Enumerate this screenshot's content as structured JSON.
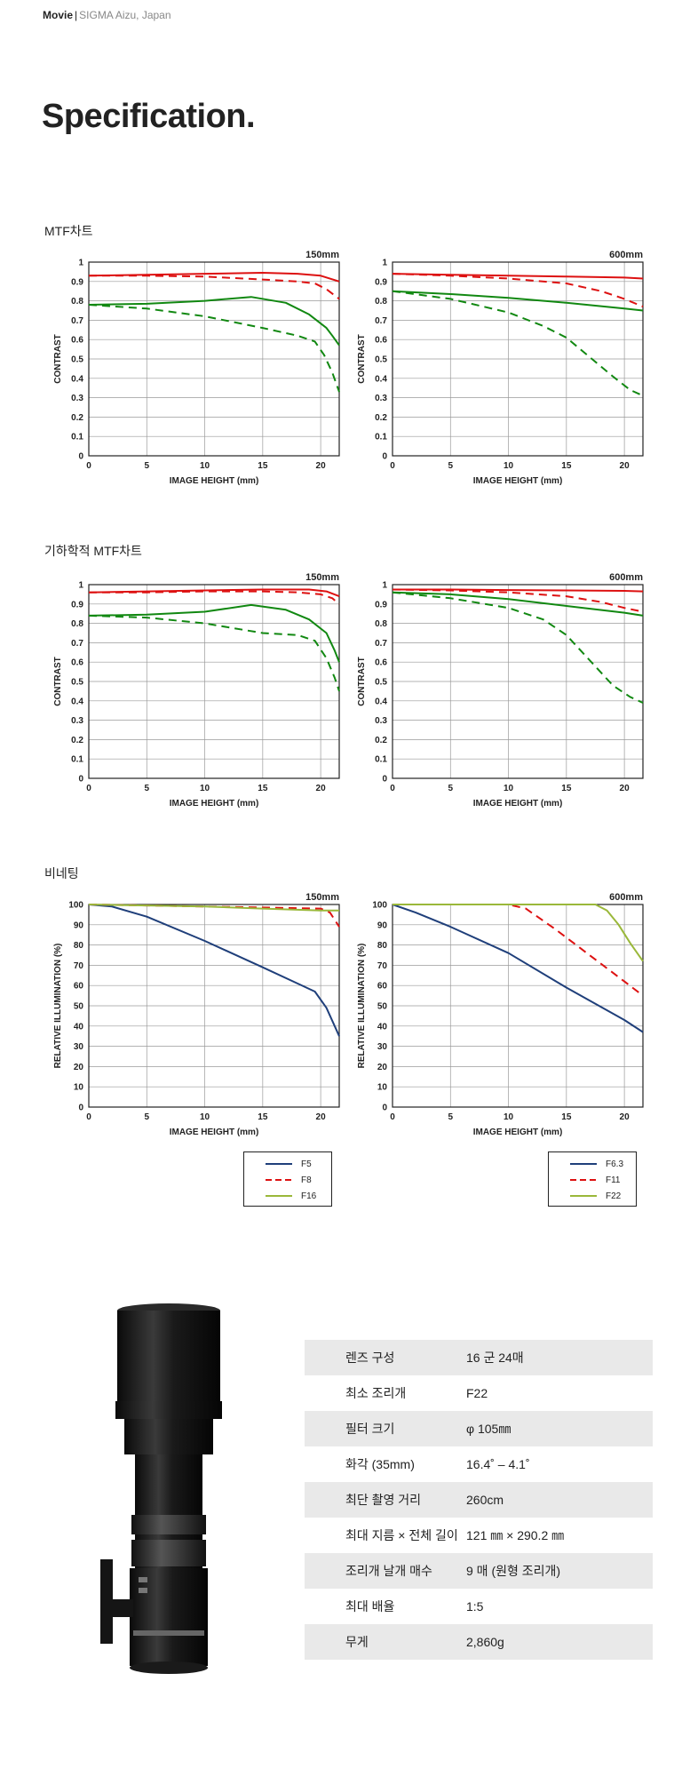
{
  "header": {
    "category": "Movie",
    "separator": "|",
    "location": "SIGMA Aizu, Japan"
  },
  "page_title": "Specification.",
  "sections": {
    "mtf": "MTF차트",
    "geometric_mtf": "기하학적 MTF차트",
    "vignetting": "비네팅"
  },
  "colors": {
    "red": "#dd1111",
    "green": "#118811",
    "blue": "#1f3f7a",
    "olive": "#9ab83a"
  },
  "chart_data": [
    {
      "id": "mtf-150",
      "type": "line",
      "title": "150mm",
      "xlabel": "IMAGE HEIGHT (mm)",
      "ylabel": "CONTRAST",
      "xlim": [
        0,
        21.6
      ],
      "ylim": [
        0,
        1
      ],
      "xticks": [
        0,
        5,
        10,
        15,
        20
      ],
      "yticks": [
        0,
        0.1,
        0.2,
        0.3,
        0.4,
        0.5,
        0.6,
        0.7,
        0.8,
        0.9,
        1
      ],
      "ytick_labels": [
        "0",
        "0.1",
        "0.2",
        "0.3",
        "0.4",
        "0.5",
        "0.6",
        "0.7",
        "0.8",
        "0.9",
        "1"
      ],
      "grid": true,
      "series": [
        {
          "color": "#dd1111",
          "dash": "solid",
          "x": [
            0,
            5,
            10,
            15,
            18,
            20,
            21.6
          ],
          "y": [
            0.93,
            0.935,
            0.94,
            0.945,
            0.94,
            0.93,
            0.9
          ]
        },
        {
          "color": "#dd1111",
          "dash": "dashed",
          "x": [
            0,
            5,
            10,
            15,
            18,
            19.5,
            20.5,
            21.6
          ],
          "y": [
            0.93,
            0.93,
            0.925,
            0.91,
            0.9,
            0.89,
            0.86,
            0.81
          ]
        },
        {
          "color": "#118811",
          "dash": "solid",
          "x": [
            0,
            5,
            10,
            14,
            17,
            19,
            20.5,
            21,
            21.6
          ],
          "y": [
            0.78,
            0.785,
            0.8,
            0.82,
            0.79,
            0.73,
            0.66,
            0.62,
            0.57
          ]
        },
        {
          "color": "#118811",
          "dash": "dashed",
          "x": [
            0,
            5,
            10,
            15,
            18,
            19.5,
            20.3,
            21,
            21.6
          ],
          "y": [
            0.78,
            0.76,
            0.72,
            0.66,
            0.62,
            0.59,
            0.52,
            0.43,
            0.33
          ]
        }
      ]
    },
    {
      "id": "mtf-600",
      "type": "line",
      "title": "600mm",
      "xlabel": "IMAGE HEIGHT (mm)",
      "ylabel": "CONTRAST",
      "xlim": [
        0,
        21.6
      ],
      "ylim": [
        0,
        1
      ],
      "xticks": [
        0,
        5,
        10,
        15,
        20
      ],
      "yticks": [
        0,
        0.1,
        0.2,
        0.3,
        0.4,
        0.5,
        0.6,
        0.7,
        0.8,
        0.9,
        1
      ],
      "ytick_labels": [
        "0",
        "0.1",
        "0.2",
        "0.3",
        "0.4",
        "0.5",
        "0.6",
        "0.7",
        "0.8",
        "0.9",
        "1"
      ],
      "grid": true,
      "series": [
        {
          "color": "#dd1111",
          "dash": "solid",
          "x": [
            0,
            5,
            10,
            15,
            20,
            21.6
          ],
          "y": [
            0.94,
            0.935,
            0.93,
            0.925,
            0.92,
            0.915
          ]
        },
        {
          "color": "#dd1111",
          "dash": "dashed",
          "x": [
            0,
            5,
            10,
            15,
            18,
            20,
            21.6
          ],
          "y": [
            0.94,
            0.93,
            0.915,
            0.89,
            0.85,
            0.81,
            0.77
          ]
        },
        {
          "color": "#118811",
          "dash": "solid",
          "x": [
            0,
            5,
            10,
            15,
            20,
            21.6
          ],
          "y": [
            0.85,
            0.835,
            0.815,
            0.79,
            0.76,
            0.75
          ]
        },
        {
          "color": "#118811",
          "dash": "dashed",
          "x": [
            0,
            5,
            10,
            13,
            15,
            17,
            19,
            20.5,
            21.6
          ],
          "y": [
            0.85,
            0.81,
            0.74,
            0.67,
            0.61,
            0.51,
            0.41,
            0.34,
            0.31
          ]
        }
      ]
    },
    {
      "id": "geo-mtf-150",
      "type": "line",
      "title": "150mm",
      "xlabel": "IMAGE HEIGHT (mm)",
      "ylabel": "CONTRAST",
      "xlim": [
        0,
        21.6
      ],
      "ylim": [
        0,
        1
      ],
      "xticks": [
        0,
        5,
        10,
        15,
        20
      ],
      "yticks": [
        0,
        0.1,
        0.2,
        0.3,
        0.4,
        0.5,
        0.6,
        0.7,
        0.8,
        0.9,
        1
      ],
      "ytick_labels": [
        "0",
        "0.1",
        "0.2",
        "0.3",
        "0.4",
        "0.5",
        "0.6",
        "0.7",
        "0.8",
        "0.9",
        "1"
      ],
      "grid": true,
      "series": [
        {
          "color": "#dd1111",
          "dash": "solid",
          "x": [
            0,
            5,
            10,
            15,
            19,
            20.5,
            21.6
          ],
          "y": [
            0.96,
            0.965,
            0.97,
            0.975,
            0.975,
            0.965,
            0.94
          ]
        },
        {
          "color": "#dd1111",
          "dash": "dashed",
          "x": [
            0,
            5,
            10,
            15,
            18,
            20,
            21,
            21.6
          ],
          "y": [
            0.96,
            0.96,
            0.965,
            0.965,
            0.96,
            0.95,
            0.93,
            0.9
          ]
        },
        {
          "color": "#118811",
          "dash": "solid",
          "x": [
            0,
            5,
            10,
            14,
            17,
            19,
            20.5,
            21.2,
            21.6
          ],
          "y": [
            0.84,
            0.845,
            0.86,
            0.895,
            0.87,
            0.82,
            0.75,
            0.66,
            0.6
          ]
        },
        {
          "color": "#118811",
          "dash": "dashed",
          "x": [
            0,
            5,
            10,
            15,
            18,
            19.5,
            20.5,
            21.2,
            21.6
          ],
          "y": [
            0.84,
            0.83,
            0.8,
            0.75,
            0.74,
            0.71,
            0.62,
            0.52,
            0.45
          ]
        }
      ]
    },
    {
      "id": "geo-mtf-600",
      "type": "line",
      "title": "600mm",
      "xlabel": "IMAGE HEIGHT (mm)",
      "ylabel": "CONTRAST",
      "xlim": [
        0,
        21.6
      ],
      "ylim": [
        0,
        1
      ],
      "xticks": [
        0,
        5,
        10,
        15,
        20
      ],
      "yticks": [
        0,
        0.1,
        0.2,
        0.3,
        0.4,
        0.5,
        0.6,
        0.7,
        0.8,
        0.9,
        1
      ],
      "ytick_labels": [
        "0",
        "0.1",
        "0.2",
        "0.3",
        "0.4",
        "0.5",
        "0.6",
        "0.7",
        "0.8",
        "0.9",
        "1"
      ],
      "grid": true,
      "series": [
        {
          "color": "#dd1111",
          "dash": "solid",
          "x": [
            0,
            5,
            10,
            15,
            20,
            21.6
          ],
          "y": [
            0.975,
            0.975,
            0.972,
            0.97,
            0.968,
            0.965
          ]
        },
        {
          "color": "#dd1111",
          "dash": "dashed",
          "x": [
            0,
            5,
            10,
            15,
            18,
            20,
            21.6
          ],
          "y": [
            0.975,
            0.97,
            0.96,
            0.94,
            0.91,
            0.88,
            0.86
          ]
        },
        {
          "color": "#118811",
          "dash": "solid",
          "x": [
            0,
            5,
            10,
            15,
            20,
            21.6
          ],
          "y": [
            0.96,
            0.95,
            0.925,
            0.89,
            0.855,
            0.84
          ]
        },
        {
          "color": "#118811",
          "dash": "dashed",
          "x": [
            0,
            5,
            10,
            13,
            15,
            17,
            19,
            20.5,
            21.6
          ],
          "y": [
            0.96,
            0.93,
            0.88,
            0.82,
            0.74,
            0.61,
            0.48,
            0.42,
            0.39
          ]
        }
      ]
    },
    {
      "id": "vig-150",
      "type": "line",
      "title": "150mm",
      "xlabel": "IMAGE HEIGHT (mm)",
      "ylabel": "RELATIVE ILLUMINATION (%)",
      "xlim": [
        0,
        21.6
      ],
      "ylim": [
        0,
        100
      ],
      "xticks": [
        0,
        5,
        10,
        15,
        20
      ],
      "yticks": [
        0,
        10,
        20,
        30,
        40,
        50,
        60,
        70,
        80,
        90,
        100
      ],
      "ytick_labels": [
        "0",
        "10",
        "20",
        "30",
        "40",
        "50",
        "60",
        "70",
        "80",
        "90",
        "100"
      ],
      "grid": true,
      "series": [
        {
          "name": "F5",
          "color": "#1f3f7a",
          "dash": "solid",
          "x": [
            0,
            2,
            5,
            10,
            15,
            18,
            19.5,
            20.5,
            21.6
          ],
          "y": [
            100,
            99,
            94,
            82,
            69,
            61,
            57,
            49,
            35
          ]
        },
        {
          "name": "F8",
          "color": "#dd1111",
          "dash": "dashed",
          "x": [
            0,
            5,
            10,
            15,
            20,
            20.8,
            21.6
          ],
          "y": [
            100,
            99.5,
            99,
            98.5,
            98,
            96,
            89
          ]
        },
        {
          "name": "F16",
          "color": "#9ab83a",
          "dash": "solid",
          "x": [
            0,
            5,
            10,
            15,
            20,
            21.6
          ],
          "y": [
            100,
            99.5,
            99,
            98,
            97,
            97
          ]
        }
      ]
    },
    {
      "id": "vig-600",
      "type": "line",
      "title": "600mm",
      "xlabel": "IMAGE HEIGHT (mm)",
      "ylabel": "RELATIVE ILLUMINATION (%)",
      "xlim": [
        0,
        21.6
      ],
      "ylim": [
        0,
        100
      ],
      "xticks": [
        0,
        5,
        10,
        15,
        20
      ],
      "yticks": [
        0,
        10,
        20,
        30,
        40,
        50,
        60,
        70,
        80,
        90,
        100
      ],
      "ytick_labels": [
        "0",
        "10",
        "20",
        "30",
        "40",
        "50",
        "60",
        "70",
        "80",
        "90",
        "100"
      ],
      "grid": true,
      "series": [
        {
          "name": "F6.3",
          "color": "#1f3f7a",
          "dash": "solid",
          "x": [
            0,
            2,
            5,
            10,
            15,
            20,
            21.6
          ],
          "y": [
            100,
            96,
            89,
            76,
            59,
            43,
            37
          ]
        },
        {
          "name": "F11",
          "color": "#dd1111",
          "dash": "dashed",
          "x": [
            0,
            10,
            11.5,
            14,
            17,
            20,
            21.6
          ],
          "y": [
            100,
            100,
            98,
            88,
            75,
            62,
            55
          ]
        },
        {
          "name": "F22",
          "color": "#9ab83a",
          "dash": "solid",
          "x": [
            0,
            17.5,
            18.5,
            19.5,
            20.5,
            21.6
          ],
          "y": [
            100,
            100,
            97,
            90,
            81,
            72
          ]
        }
      ]
    }
  ],
  "legends": [
    {
      "items": [
        {
          "label": "F5",
          "color": "#1f3f7a",
          "dash": "solid"
        },
        {
          "label": "F8",
          "color": "#dd1111",
          "dash": "dashed"
        },
        {
          "label": "F16",
          "color": "#9ab83a",
          "dash": "solid"
        }
      ]
    },
    {
      "items": [
        {
          "label": "F6.3",
          "color": "#1f3f7a",
          "dash": "solid"
        },
        {
          "label": "F11",
          "color": "#dd1111",
          "dash": "dashed"
        },
        {
          "label": "F22",
          "color": "#9ab83a",
          "dash": "solid"
        }
      ]
    }
  ],
  "specs": [
    {
      "label": "렌즈 구성",
      "value": "16 군 24매"
    },
    {
      "label": "최소 조리개",
      "value": "F22"
    },
    {
      "label": "필터 크기",
      "value": "φ 105㎜"
    },
    {
      "label": "화각 (35mm)",
      "value": "16.4˚ – 4.1˚"
    },
    {
      "label": "최단 촬영 거리",
      "value": "260cm"
    },
    {
      "label": "최대 지름 × 전체 길이",
      "value": "121 ㎜ × 290.2 ㎜"
    },
    {
      "label": "조리개 날개 매수",
      "value": "9 매 (원형 조리개)"
    },
    {
      "label": "최대 배율",
      "value": "1:5"
    },
    {
      "label": "무게",
      "value": "2,860g"
    }
  ]
}
